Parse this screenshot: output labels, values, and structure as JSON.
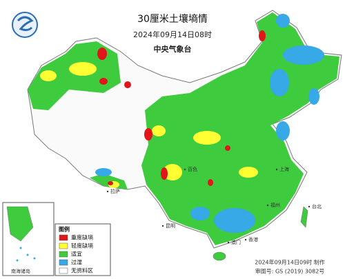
{
  "header": {
    "title": "30厘米土壤墒情",
    "date": "2024年09月14日08时",
    "agency": "中央气象台"
  },
  "legend": {
    "title": "图例",
    "items": [
      {
        "label": "重度缺墒",
        "color": "#e0161b"
      },
      {
        "label": "轻度缺墒",
        "color": "#ffff33"
      },
      {
        "label": "适宜",
        "color": "#3ecb3e"
      },
      {
        "label": "过湿",
        "color": "#36a9e6"
      },
      {
        "label": "无资料区",
        "color": "#ffffff"
      }
    ]
  },
  "inset": {
    "label": "南海诸岛"
  },
  "cities": [
    "上海",
    "福州",
    "台北",
    "昆明",
    "香港",
    "澳门",
    "拉萨",
    "百色"
  ],
  "footer": {
    "made": "2024年09月14日09时 制作",
    "approval": "审图号: GS (2019) 3082号"
  }
}
